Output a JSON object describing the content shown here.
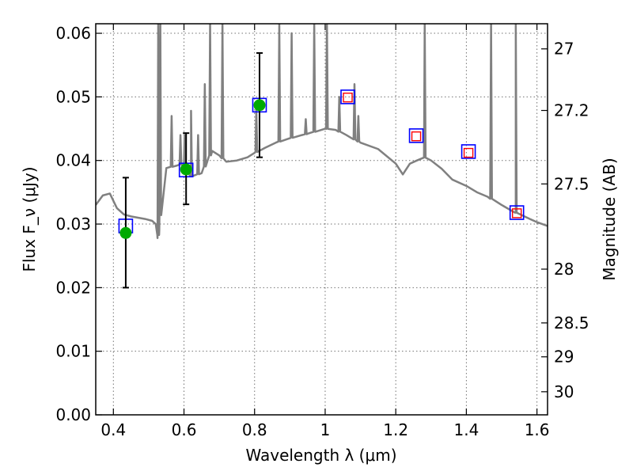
{
  "chart_data": {
    "type": "scatter",
    "xlabel": "Wavelength λ (μm)",
    "ylabel": "Flux F_ν (μJy)",
    "ylabel_right": "Magnitude (AB)",
    "xlim": [
      0.35,
      1.63
    ],
    "ylim": [
      0.0,
      0.0615
    ],
    "grid": true,
    "x_ticks": [
      "0.4",
      "0.6",
      "0.8",
      "1",
      "1.2",
      "1.4",
      "1.6"
    ],
    "y_ticks": [
      "0.00",
      "0.01",
      "0.02",
      "0.03",
      "0.04",
      "0.05",
      "0.06"
    ],
    "right_ticks": [
      "27",
      "27.2",
      "27.5",
      "28",
      "28.5",
      "29",
      "30"
    ],
    "colors": {
      "spectrum": "#808080",
      "model_box": "#0000ff",
      "detection": "#00aa00",
      "upper_limit": "#ff0000",
      "errorbar": "#000000"
    },
    "spectrum": {
      "name": "",
      "continuum": [
        [
          0.35,
          0.033
        ],
        [
          0.37,
          0.0345
        ],
        [
          0.39,
          0.0348
        ],
        [
          0.41,
          0.0325
        ],
        [
          0.43,
          0.0315
        ],
        [
          0.45,
          0.0312
        ],
        [
          0.47,
          0.031
        ],
        [
          0.49,
          0.0308
        ],
        [
          0.51,
          0.0305
        ],
        [
          0.52,
          0.03
        ],
        [
          0.525,
          0.0278
        ],
        [
          0.53,
          0.029
        ],
        [
          0.535,
          0.033
        ],
        [
          0.55,
          0.0388
        ],
        [
          0.58,
          0.0392
        ],
        [
          0.6,
          0.0395
        ],
        [
          0.62,
          0.0375
        ],
        [
          0.65,
          0.038
        ],
        [
          0.68,
          0.0415
        ],
        [
          0.7,
          0.0408
        ],
        [
          0.72,
          0.0398
        ],
        [
          0.75,
          0.04
        ],
        [
          0.78,
          0.0405
        ],
        [
          0.8,
          0.0412
        ],
        [
          0.83,
          0.042
        ],
        [
          0.86,
          0.0428
        ],
        [
          0.9,
          0.0435
        ],
        [
          0.95,
          0.0442
        ],
        [
          1.0,
          0.045
        ],
        [
          1.03,
          0.0448
        ],
        [
          1.06,
          0.044
        ],
        [
          1.1,
          0.0428
        ],
        [
          1.15,
          0.0418
        ],
        [
          1.2,
          0.0395
        ],
        [
          1.22,
          0.0378
        ],
        [
          1.24,
          0.0395
        ],
        [
          1.26,
          0.04
        ],
        [
          1.28,
          0.0405
        ],
        [
          1.3,
          0.04
        ],
        [
          1.33,
          0.0387
        ],
        [
          1.36,
          0.037
        ],
        [
          1.4,
          0.036
        ],
        [
          1.43,
          0.035
        ],
        [
          1.46,
          0.0343
        ],
        [
          1.5,
          0.033
        ],
        [
          1.54,
          0.0318
        ],
        [
          1.58,
          0.0308
        ],
        [
          1.6,
          0.0303
        ],
        [
          1.63,
          0.0297
        ]
      ],
      "emission_lines": [
        [
          0.527,
          0.0615
        ],
        [
          0.533,
          0.0615
        ],
        [
          0.565,
          0.047
        ],
        [
          0.59,
          0.044
        ],
        [
          0.602,
          0.044
        ],
        [
          0.62,
          0.0478
        ],
        [
          0.64,
          0.044
        ],
        [
          0.659,
          0.052
        ],
        [
          0.674,
          0.0615
        ],
        [
          0.709,
          0.0615
        ],
        [
          0.805,
          0.048
        ],
        [
          0.87,
          0.0615
        ],
        [
          0.905,
          0.06
        ],
        [
          0.945,
          0.0465
        ],
        [
          0.969,
          0.0615
        ],
        [
          1.005,
          0.0615
        ],
        [
          1.04,
          0.05
        ],
        [
          1.083,
          0.052
        ],
        [
          1.094,
          0.047
        ],
        [
          1.282,
          0.0615
        ],
        [
          1.47,
          0.0615
        ],
        [
          1.54,
          0.0615
        ]
      ]
    },
    "model_photometry": [
      {
        "x": 0.435,
        "y": 0.0297
      },
      {
        "x": 0.606,
        "y": 0.0385
      },
      {
        "x": 0.814,
        "y": 0.0487
      },
      {
        "x": 1.064,
        "y": 0.05
      },
      {
        "x": 1.258,
        "y": 0.0439
      },
      {
        "x": 1.406,
        "y": 0.0414
      },
      {
        "x": 1.543,
        "y": 0.0318
      }
    ],
    "detections": [
      {
        "x": 0.435,
        "y": 0.0286,
        "yerr_low": 0.02,
        "yerr_high": 0.0373
      },
      {
        "x": 0.606,
        "y": 0.0386,
        "yerr_low": 0.0331,
        "yerr_high": 0.0443
      },
      {
        "x": 0.814,
        "y": 0.0487,
        "yerr_low": 0.0405,
        "yerr_high": 0.0569
      }
    ],
    "upper_limits": [
      {
        "x": 1.064,
        "y": 0.0499
      },
      {
        "x": 1.258,
        "y": 0.0438
      },
      {
        "x": 1.406,
        "y": 0.0412
      },
      {
        "x": 1.543,
        "y": 0.0317
      }
    ]
  }
}
